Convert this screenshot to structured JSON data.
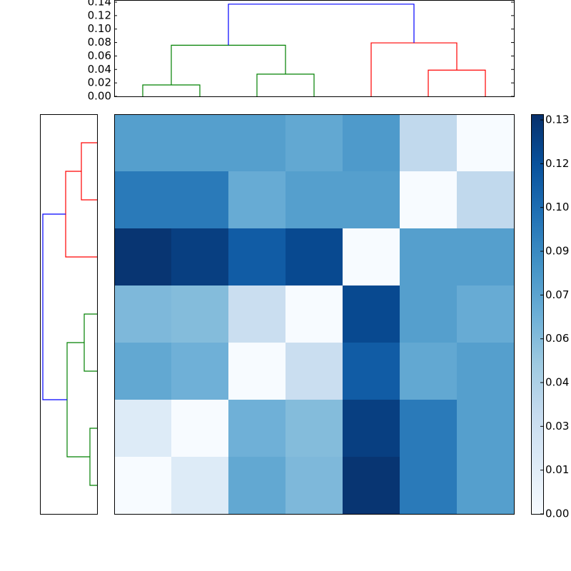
{
  "chart_data": [
    {
      "type": "dendrogram",
      "orientation": "top",
      "xlim": [
        0,
        70
      ],
      "ylim": [
        0,
        0.14
      ],
      "yticks": [
        {
          "value": 0,
          "label": "0.00"
        },
        {
          "value": 0.02,
          "label": "0.02"
        },
        {
          "value": 0.04,
          "label": "0.04"
        },
        {
          "value": 0.06,
          "label": "0.06"
        },
        {
          "value": 0.08,
          "label": "0.08"
        },
        {
          "value": 0.1,
          "label": "0.10"
        },
        {
          "value": 0.12,
          "label": "0.12"
        },
        {
          "value": 0.14,
          "label": "0.14"
        }
      ],
      "icoord": [
        [
          5,
          5,
          15,
          15
        ],
        [
          25,
          25,
          35,
          35
        ],
        [
          10,
          10,
          30,
          30
        ],
        [
          55,
          55,
          65,
          65
        ],
        [
          45,
          45,
          60,
          60
        ],
        [
          20,
          20,
          52.5,
          52.5
        ]
      ],
      "dcoord": [
        [
          0,
          0.017,
          0.017,
          0
        ],
        [
          0,
          0.033,
          0.033,
          0
        ],
        [
          0.017,
          0.076,
          0.076,
          0.033
        ],
        [
          0,
          0.039,
          0.039,
          0
        ],
        [
          0,
          0.0795,
          0.0795,
          0.039
        ],
        [
          0.076,
          0.137,
          0.137,
          0.0795
        ]
      ],
      "color_list": [
        "#008000",
        "#008000",
        "#008000",
        "#ff0000",
        "#ff0000",
        "#0000ff"
      ]
    },
    {
      "type": "dendrogram",
      "orientation": "left",
      "ylim": [
        0,
        70
      ],
      "xlim": [
        0,
        0.14
      ],
      "icoord": [
        [
          55,
          55,
          65,
          65
        ],
        [
          45,
          45,
          60,
          60
        ],
        [
          25,
          25,
          35,
          35
        ],
        [
          5,
          5,
          15,
          15
        ],
        [
          10,
          10,
          30,
          30
        ],
        [
          20,
          20,
          52.5,
          52.5
        ]
      ],
      "dcoord": [
        [
          0,
          0.0385,
          0.0385,
          0
        ],
        [
          0,
          0.077,
          0.077,
          0.0385
        ],
        [
          0,
          0.0315,
          0.0315,
          0
        ],
        [
          0,
          0.0175,
          0.0175,
          0
        ],
        [
          0.0175,
          0.0735,
          0.0735,
          0.0315
        ],
        [
          0.0735,
          0.133,
          0.133,
          0.077
        ]
      ],
      "color_list": [
        "#ff0000",
        "#ff0000",
        "#008000",
        "#008000",
        "#008000",
        "#0000ff"
      ]
    },
    {
      "type": "heatmap",
      "z": [
        [
          0.075,
          0.075,
          0.075,
          0.07,
          0.078,
          0.035,
          0
        ],
        [
          0.095,
          0.095,
          0.068,
          0.075,
          0.075,
          0,
          0.035
        ],
        [
          0.13,
          0.125,
          0.11,
          0.12,
          0,
          0.075,
          0.075
        ],
        [
          0.06,
          0.058,
          0.03,
          0,
          0.12,
          0.075,
          0.068
        ],
        [
          0.07,
          0.065,
          0,
          0.03,
          0.11,
          0.07,
          0.075
        ],
        [
          0.017,
          0,
          0.065,
          0.058,
          0.125,
          0.095,
          0.075
        ],
        [
          0,
          0.017,
          0.07,
          0.06,
          0.13,
          0.095,
          0.075
        ]
      ],
      "colormap": [
        "#f7fbff",
        "#deebf7",
        "#c6dbef",
        "#9ecae1",
        "#6baed6",
        "#4292c6",
        "#2171b5",
        "#08519c",
        "#08306b"
      ],
      "clim": [
        0,
        0.1324
      ],
      "colorbar_ticks": [
        {
          "value": 0,
          "label": "0.00"
        },
        {
          "value": 0.0145,
          "label": "0.01"
        },
        {
          "value": 0.029,
          "label": "0.03"
        },
        {
          "value": 0.0435,
          "label": "0.04"
        },
        {
          "value": 0.058,
          "label": "0.06"
        },
        {
          "value": 0.0725,
          "label": "0.07"
        },
        {
          "value": 0.087,
          "label": "0.09"
        },
        {
          "value": 0.1015,
          "label": "0.10"
        },
        {
          "value": 0.116,
          "label": "0.12"
        },
        {
          "value": 0.1305,
          "label": "0.13"
        }
      ]
    }
  ]
}
